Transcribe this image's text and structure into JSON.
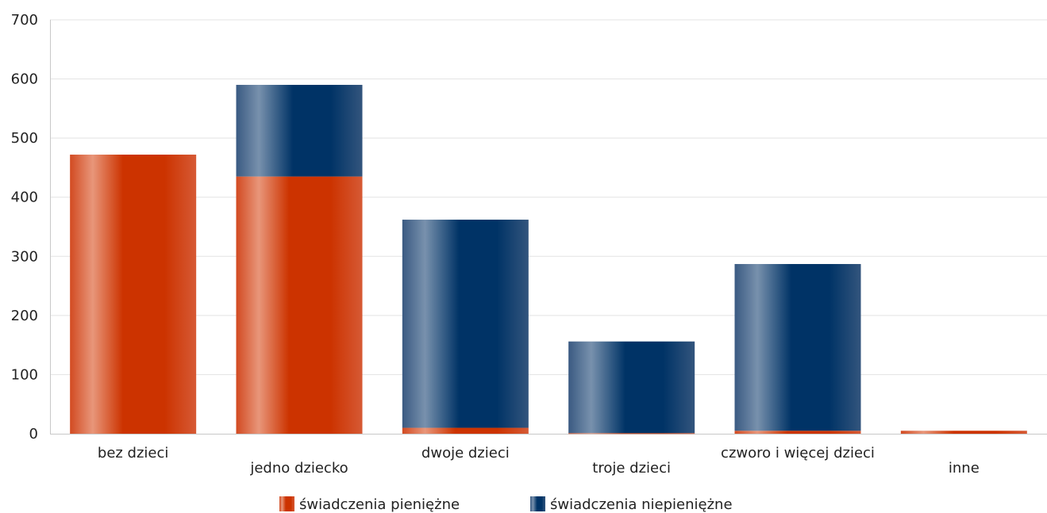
{
  "chart_data": {
    "type": "bar",
    "stacked": true,
    "categories": [
      "bez dzieci",
      "jedno dziecko",
      "dwoje dzieci",
      "troje dzieci",
      "czworo i więcej dzieci",
      "inne"
    ],
    "series": [
      {
        "name": "świadczenia pieniężne",
        "color": "#cc3300",
        "values": [
          472,
          435,
          10,
          1,
          5,
          5
        ]
      },
      {
        "name": "świadczenia niepieniężne",
        "color": "#003366",
        "values": [
          0,
          155,
          352,
          155,
          282,
          0
        ]
      }
    ],
    "ylim": [
      0,
      700
    ],
    "yticks": [
      0,
      100,
      200,
      300,
      400,
      500,
      600,
      700
    ],
    "grid": true,
    "legend_position": "bottom",
    "title": "",
    "xlabel": "",
    "ylabel": ""
  }
}
